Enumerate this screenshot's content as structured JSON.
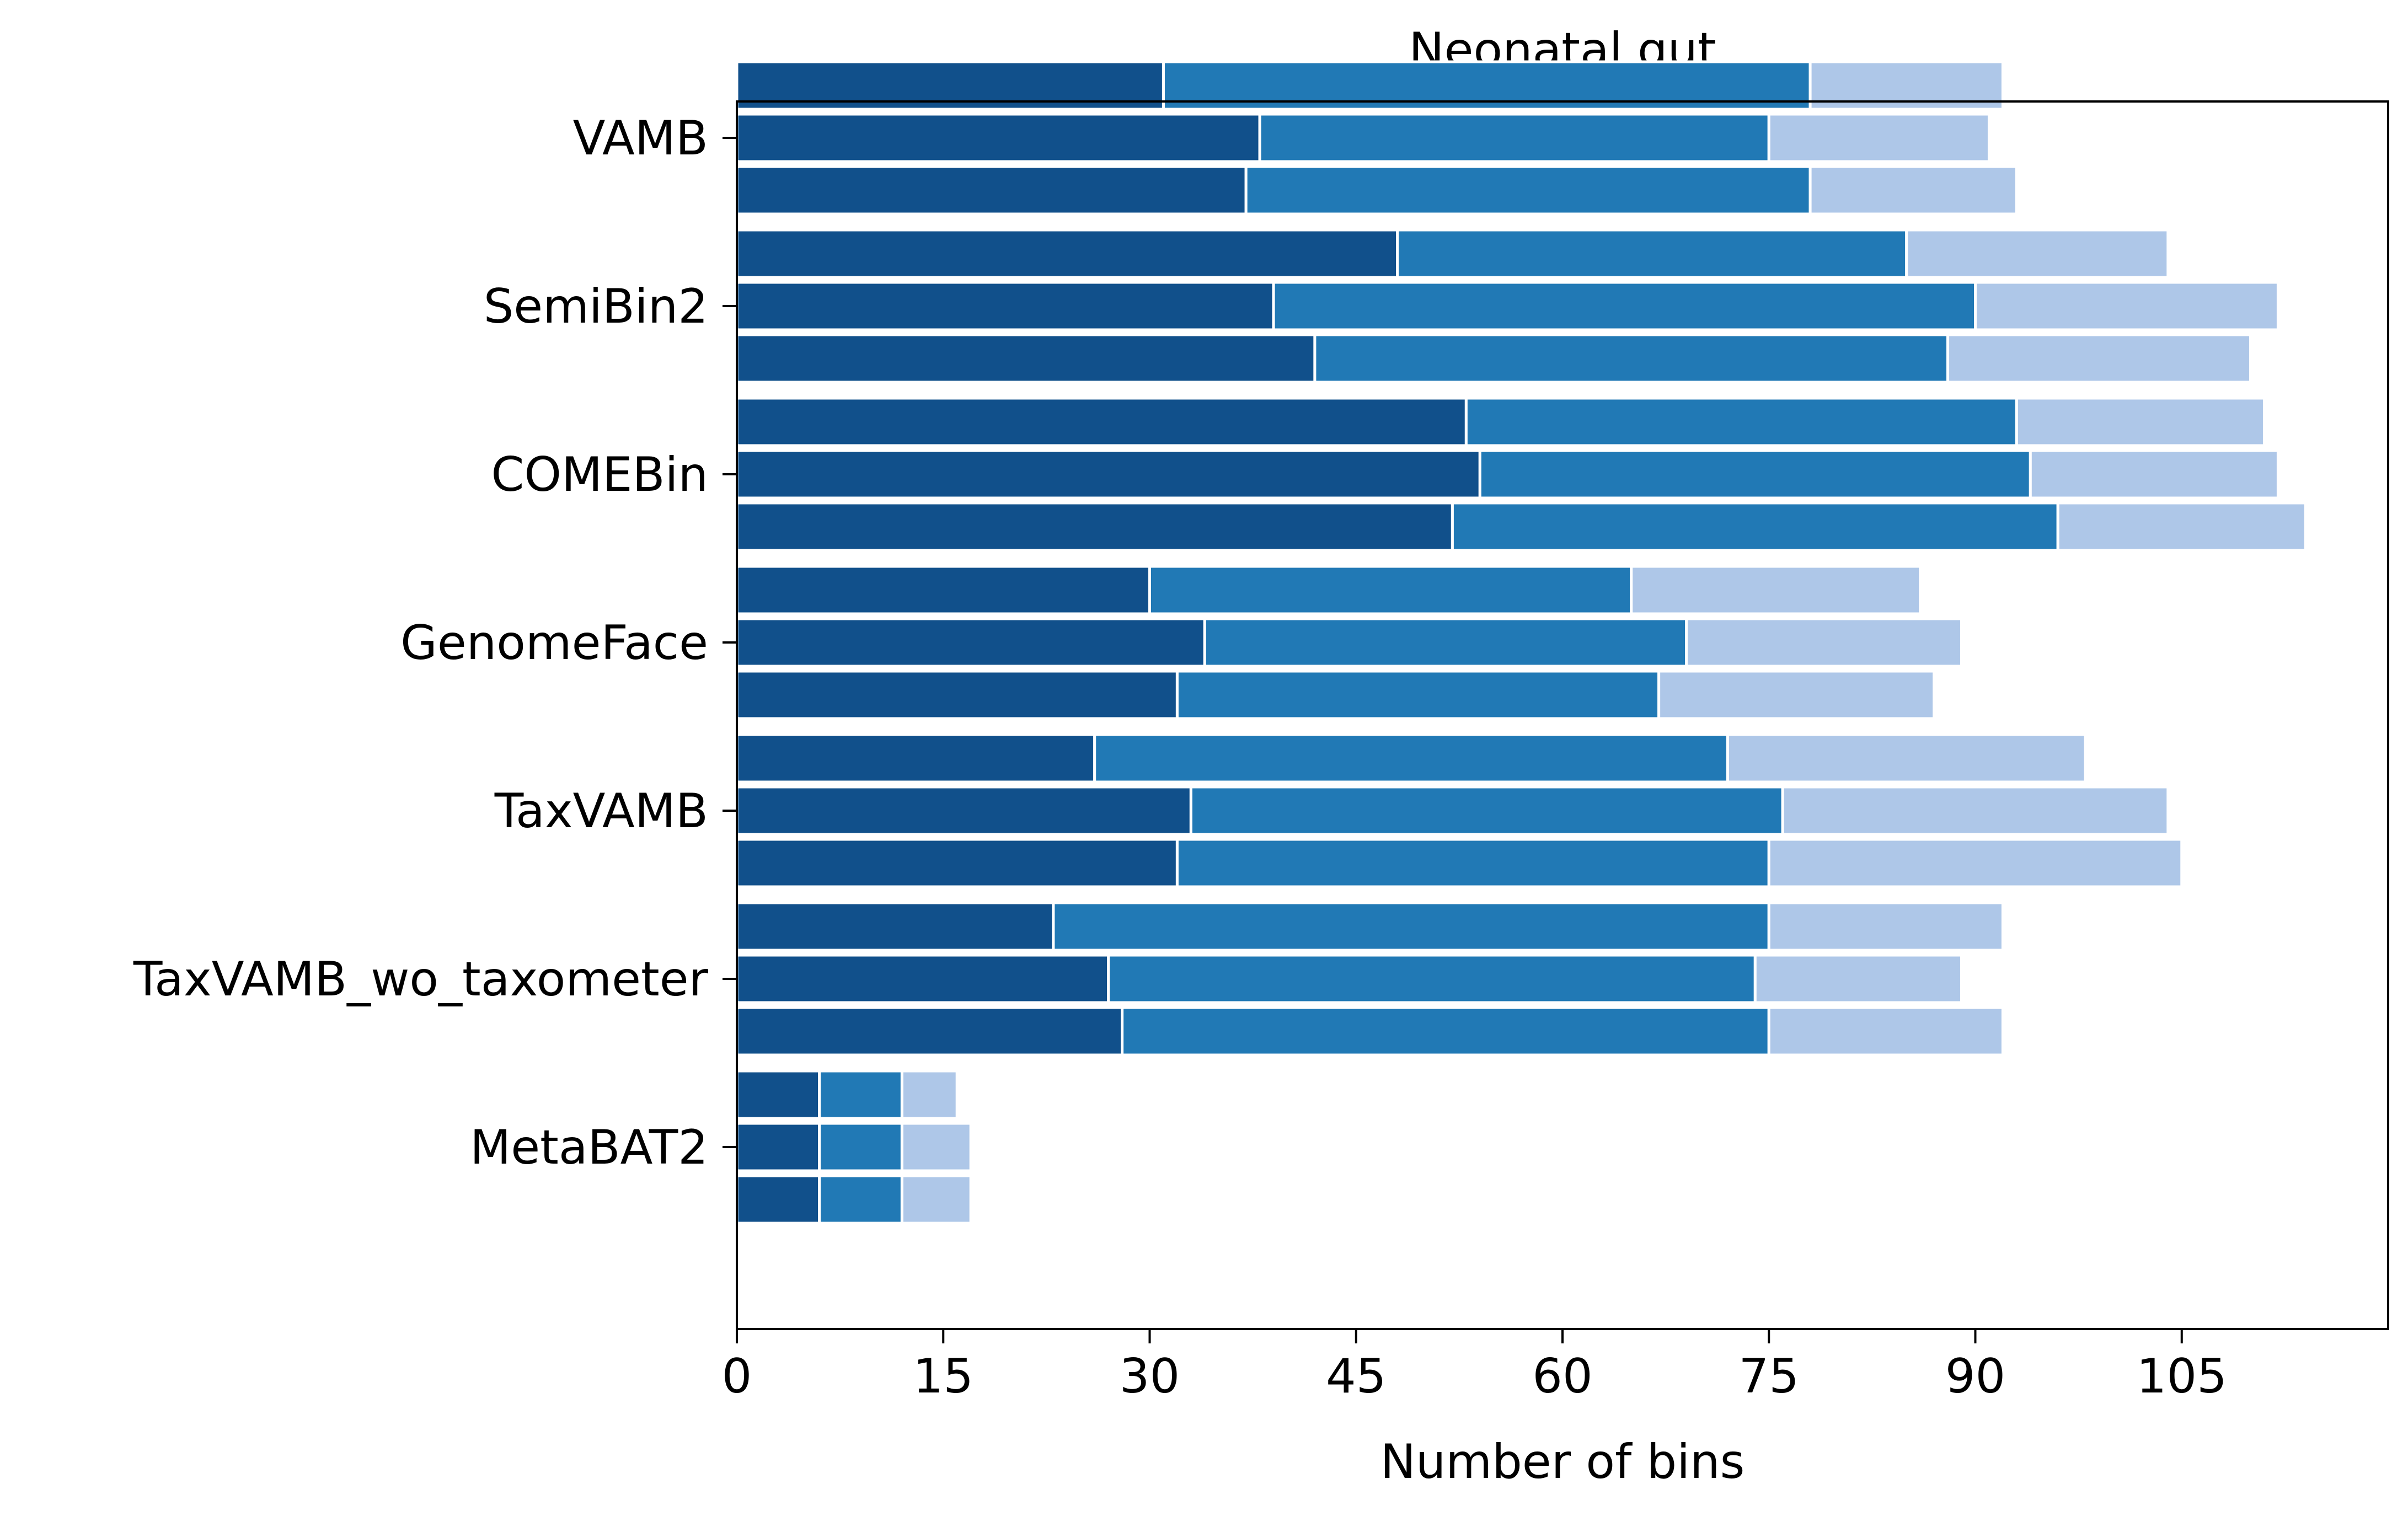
{
  "chart_data": {
    "type": "bar",
    "orientation": "horizontal",
    "stacked": true,
    "title": "Neonatal gut",
    "xlabel": "Number of bins",
    "ylabel": "",
    "xlim": [
      0,
      120
    ],
    "xticks": [
      0,
      15,
      30,
      45,
      60,
      75,
      90,
      105
    ],
    "grid": false,
    "categories": [
      "VAMB",
      "SemiBin2",
      "COMEBin",
      "GenomeFace",
      "TaxVAMB",
      "TaxVAMB_wo_taxometer",
      "MetaBAT2"
    ],
    "segment_colors": [
      "#11508b",
      "#2179b5",
      "#aec7e8"
    ],
    "groups": [
      {
        "category": "VAMB",
        "bars": [
          [
            31,
            47,
            14
          ],
          [
            38,
            37,
            16
          ],
          [
            37,
            41,
            15
          ]
        ]
      },
      {
        "category": "SemiBin2",
        "bars": [
          [
            48,
            37,
            19
          ],
          [
            39,
            51,
            22
          ],
          [
            42,
            46,
            22
          ]
        ]
      },
      {
        "category": "COMEBin",
        "bars": [
          [
            53,
            40,
            18
          ],
          [
            54,
            40,
            18
          ],
          [
            52,
            44,
            18
          ]
        ]
      },
      {
        "category": "GenomeFace",
        "bars": [
          [
            30,
            35,
            21
          ],
          [
            34,
            35,
            20
          ],
          [
            32,
            35,
            20
          ]
        ]
      },
      {
        "category": "TaxVAMB",
        "bars": [
          [
            26,
            46,
            26
          ],
          [
            33,
            43,
            28
          ],
          [
            32,
            43,
            30
          ]
        ]
      },
      {
        "category": "TaxVAMB_wo_taxometer",
        "bars": [
          [
            23,
            52,
            17
          ],
          [
            27,
            47,
            15
          ],
          [
            28,
            47,
            17
          ]
        ]
      },
      {
        "category": "MetaBAT2",
        "bars": [
          [
            6,
            6,
            4
          ],
          [
            6,
            6,
            5
          ],
          [
            6,
            6,
            5
          ]
        ]
      }
    ]
  }
}
